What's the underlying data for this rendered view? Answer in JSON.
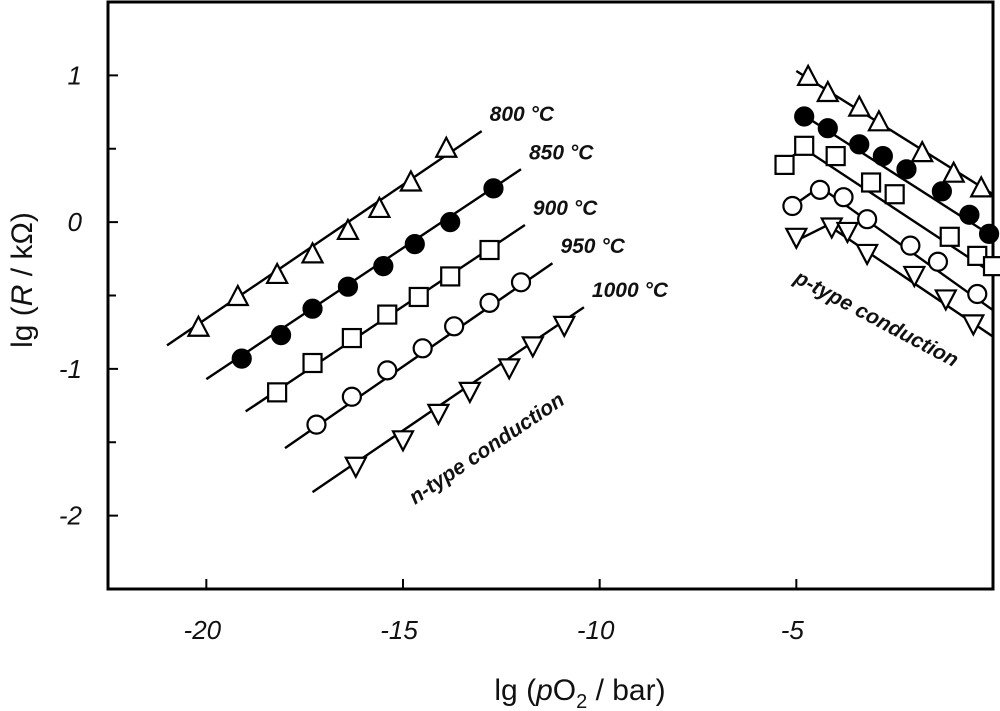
{
  "chart_data": {
    "type": "scatter",
    "title": "",
    "xlim": [
      -22.5,
      0
    ],
    "ylim": [
      -2.5,
      1.5
    ],
    "xticks": [
      -20,
      -15,
      -10,
      -5
    ],
    "yticks": [
      1,
      0,
      -1,
      -2
    ],
    "y_minor_ticks": [
      0.5,
      -0.5,
      -1.5
    ],
    "xlabel_parts": {
      "pre": "lg (",
      "italic": "p",
      "main": "O",
      "sub": "2",
      "post": " / bar)"
    },
    "ylabel_parts": {
      "pre": "lg  (",
      "italic": "R",
      "post": " / kΩ)"
    },
    "annotations": {
      "n_type": "n-type conduction",
      "p_type": "p-type conduction"
    },
    "series": [
      {
        "name": "800 °C",
        "marker": "triangle-up",
        "filled": false,
        "n_branch": {
          "x": [
            -20.2,
            -19.2,
            -18.2,
            -17.3,
            -16.4,
            -15.6,
            -14.8,
            -13.9
          ],
          "y": [
            -0.72,
            -0.51,
            -0.36,
            -0.22,
            -0.06,
            0.09,
            0.27,
            0.5
          ],
          "fit": [
            [
              -21.0,
              -0.84
            ],
            [
              -13.0,
              0.62
            ]
          ]
        },
        "p_branch": {
          "x": [
            -4.7,
            -4.2,
            -3.4,
            -2.9,
            -1.8,
            -1.0,
            -0.3
          ],
          "y": [
            0.99,
            0.88,
            0.78,
            0.68,
            0.47,
            0.33,
            0.23
          ],
          "fit": [
            [
              -5.0,
              1.03
            ],
            [
              0.0,
              0.19
            ]
          ]
        }
      },
      {
        "name": "850 °C",
        "marker": "circle",
        "filled": true,
        "n_branch": {
          "x": [
            -19.1,
            -18.1,
            -17.3,
            -16.4,
            -15.5,
            -14.7,
            -13.8,
            -12.7
          ],
          "y": [
            -0.93,
            -0.77,
            -0.59,
            -0.44,
            -0.3,
            -0.15,
            0.0,
            0.23
          ],
          "fit": [
            [
              -20.0,
              -1.07
            ],
            [
              -12.0,
              0.36
            ]
          ]
        },
        "p_branch": {
          "x": [
            -4.8,
            -4.2,
            -3.4,
            -2.8,
            -2.2,
            -1.3,
            -0.6,
            -0.1
          ],
          "y": [
            0.72,
            0.64,
            0.53,
            0.45,
            0.36,
            0.21,
            0.05,
            -0.08
          ],
          "fit": [
            [
              -5.0,
              0.76
            ],
            [
              0.0,
              -0.1
            ]
          ]
        }
      },
      {
        "name": "900 °C",
        "marker": "square",
        "filled": false,
        "n_branch": {
          "x": [
            -18.2,
            -17.3,
            -16.3,
            -15.4,
            -14.6,
            -13.8,
            -12.8
          ],
          "y": [
            -1.16,
            -0.96,
            -0.79,
            -0.63,
            -0.51,
            -0.37,
            -0.19
          ],
          "fit": [
            [
              -19.0,
              -1.29
            ],
            [
              -11.9,
              -0.02
            ]
          ]
        },
        "p_branch": {
          "x": [
            -5.3,
            -4.8,
            -4.0,
            -3.1,
            -2.5,
            -1.1,
            -0.4,
            0.0
          ],
          "y": [
            0.39,
            0.52,
            0.45,
            0.27,
            0.19,
            -0.1,
            -0.23,
            -0.3
          ],
          "fit": [
            [
              -5.4,
              0.4
            ],
            [
              -4.8,
              0.5
            ],
            [
              0.0,
              -0.35
            ]
          ]
        }
      },
      {
        "name": "950 °C",
        "marker": "circle",
        "filled": false,
        "n_branch": {
          "x": [
            -17.2,
            -16.3,
            -15.4,
            -14.5,
            -13.7,
            -12.8,
            -12.0
          ],
          "y": [
            -1.38,
            -1.19,
            -1.01,
            -0.86,
            -0.71,
            -0.55,
            -0.41
          ],
          "fit": [
            [
              -18.0,
              -1.54
            ],
            [
              -11.2,
              -0.28
            ]
          ]
        },
        "p_branch": {
          "x": [
            -5.1,
            -4.4,
            -3.8,
            -3.2,
            -2.1,
            -1.4,
            -0.4
          ],
          "y": [
            0.11,
            0.22,
            0.17,
            0.02,
            -0.16,
            -0.27,
            -0.49
          ],
          "fit": [
            [
              -5.2,
              0.09
            ],
            [
              -4.4,
              0.24
            ],
            [
              0.0,
              -0.6
            ]
          ]
        }
      },
      {
        "name": "1000 °C",
        "marker": "triangle-down",
        "filled": false,
        "n_branch": {
          "x": [
            -16.2,
            -15.0,
            -14.1,
            -13.3,
            -12.3,
            -11.7,
            -10.9
          ],
          "y": [
            -1.66,
            -1.48,
            -1.3,
            -1.15,
            -0.99,
            -0.84,
            -0.7
          ],
          "fit": [
            [
              -17.3,
              -1.84
            ],
            [
              -10.4,
              -0.58
            ]
          ]
        },
        "p_branch": {
          "x": [
            -5.0,
            -4.1,
            -3.7,
            -3.2,
            -2.0,
            -1.2,
            -0.5
          ],
          "y": [
            -0.1,
            -0.03,
            -0.06,
            -0.21,
            -0.36,
            -0.52,
            -0.69
          ],
          "fit": [
            [
              -5.1,
              -0.14
            ],
            [
              -4.2,
              -0.02
            ],
            [
              0.0,
              -0.78
            ]
          ]
        }
      }
    ]
  }
}
